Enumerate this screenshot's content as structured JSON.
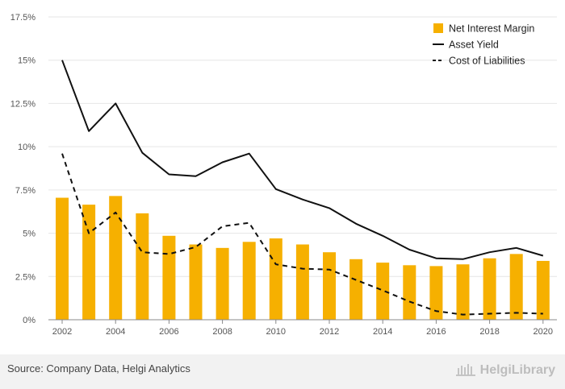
{
  "chart_data": {
    "type": "bar",
    "x": [
      "2002",
      "2003",
      "2004",
      "2005",
      "2006",
      "2007",
      "2008",
      "2009",
      "2010",
      "2011",
      "2012",
      "2013",
      "2014",
      "2015",
      "2016",
      "2017",
      "2018",
      "2019",
      "2020"
    ],
    "x_tick_labels": [
      "2002",
      "2004",
      "2006",
      "2008",
      "2010",
      "2012",
      "2014",
      "2016",
      "2018",
      "2020"
    ],
    "y_tick_labels": [
      "0%",
      "2.5%",
      "5%",
      "7.5%",
      "10%",
      "12.5%",
      "15%",
      "17.5%"
    ],
    "ylim": [
      0,
      17.5
    ],
    "yticks": [
      0,
      2.5,
      5,
      7.5,
      10,
      12.5,
      15,
      17.5
    ],
    "grid": true,
    "legend_position": "top-right",
    "series": [
      {
        "name": "Net Interest Margin",
        "type": "bar",
        "color": "#f6b000",
        "values": [
          7.05,
          6.65,
          7.15,
          6.15,
          4.85,
          4.35,
          4.15,
          4.5,
          4.7,
          4.35,
          3.9,
          3.5,
          3.3,
          3.15,
          3.1,
          3.2,
          3.55,
          3.8,
          3.4
        ]
      },
      {
        "name": "Asset Yield",
        "type": "line",
        "color": "#111111",
        "dash": "solid",
        "values": [
          15.0,
          10.9,
          12.5,
          9.65,
          8.4,
          8.3,
          9.1,
          9.6,
          7.55,
          6.95,
          6.45,
          5.55,
          4.85,
          4.05,
          3.55,
          3.5,
          3.9,
          4.15,
          3.7
        ]
      },
      {
        "name": "Cost of Liabilities",
        "type": "line",
        "color": "#111111",
        "dash": "dashed",
        "values": [
          9.6,
          5.0,
          6.2,
          3.9,
          3.8,
          4.2,
          5.4,
          5.6,
          3.2,
          2.95,
          2.9,
          2.3,
          1.7,
          1.05,
          0.5,
          0.3,
          0.35,
          0.4,
          0.35
        ]
      }
    ]
  },
  "footer": {
    "source": "Source: Company Data, Helgi Analytics",
    "brand": "HelgiLibrary"
  }
}
